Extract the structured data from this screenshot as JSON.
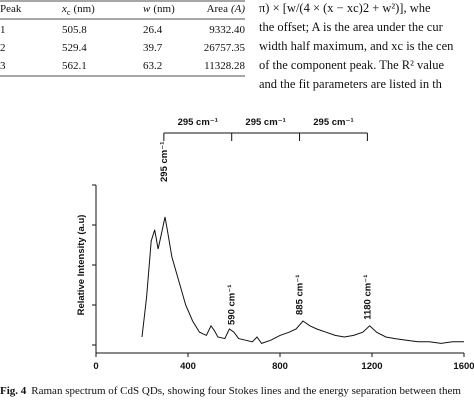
{
  "table": {
    "header": [
      {
        "text": "Peak"
      },
      {
        "var": "x",
        "sub": "c",
        "unit": "(nm)"
      },
      {
        "var": "w",
        "unit": "(nm)"
      },
      {
        "text": "Area",
        "paren": "(A)"
      }
    ],
    "rows": [
      [
        "1",
        "505.8",
        "26.4",
        "9332.40"
      ],
      [
        "2",
        "529.4",
        "39.7",
        "26757.35"
      ],
      [
        "3",
        "562.1",
        "63.2",
        "11328.28"
      ]
    ]
  },
  "body_text": [
    "π) × [w/(4 × (x − xc)2 + w²)], whe",
    "the offset; A is the area under the cur",
    "width half maximum, and xc is the cen",
    "of the component peak. The R² value",
    "and the fit parameters are listed in th"
  ],
  "chart_data": {
    "type": "line",
    "ylabel": "Relative Intensity (a.u)",
    "xlim": [
      0,
      1600
    ],
    "xticks": [
      0,
      400,
      800,
      1200,
      1600
    ],
    "ylim": [
      0,
      100
    ],
    "color": "#111111",
    "x": [
      200,
      220,
      240,
      255,
      270,
      285,
      300,
      310,
      330,
      360,
      390,
      420,
      450,
      480,
      500,
      515,
      530,
      560,
      580,
      600,
      620,
      650,
      680,
      700,
      720,
      760,
      800,
      840,
      870,
      900,
      930,
      960,
      1000,
      1040,
      1080,
      1120,
      1160,
      1190,
      1220,
      1260,
      1300,
      1350,
      1400,
      1450,
      1500,
      1550,
      1600
    ],
    "values": [
      5,
      30,
      65,
      72,
      60,
      70,
      80,
      72,
      55,
      40,
      25,
      15,
      8,
      6,
      12,
      9,
      5,
      4,
      10,
      8,
      4,
      3,
      2,
      5,
      1,
      3,
      6,
      8,
      10,
      15,
      12,
      10,
      8,
      6,
      5,
      6,
      8,
      12,
      8,
      5,
      4,
      3,
      2,
      2,
      1,
      2,
      2
    ],
    "peaks": [
      {
        "x": 295,
        "label": "295 cm⁻¹"
      },
      {
        "x": 590,
        "label": "590 cm⁻¹"
      },
      {
        "x": 885,
        "label": "885 cm⁻¹"
      },
      {
        "x": 1180,
        "label": "1180 cm⁻¹"
      }
    ],
    "spacings": [
      "295 cm⁻¹",
      "295 cm⁻¹",
      "295 cm⁻¹"
    ]
  },
  "caption": {
    "label": "Fig. 4",
    "text": "Raman spectrum of CdS QDs, showing four Stokes lines and the energy separation between them"
  }
}
